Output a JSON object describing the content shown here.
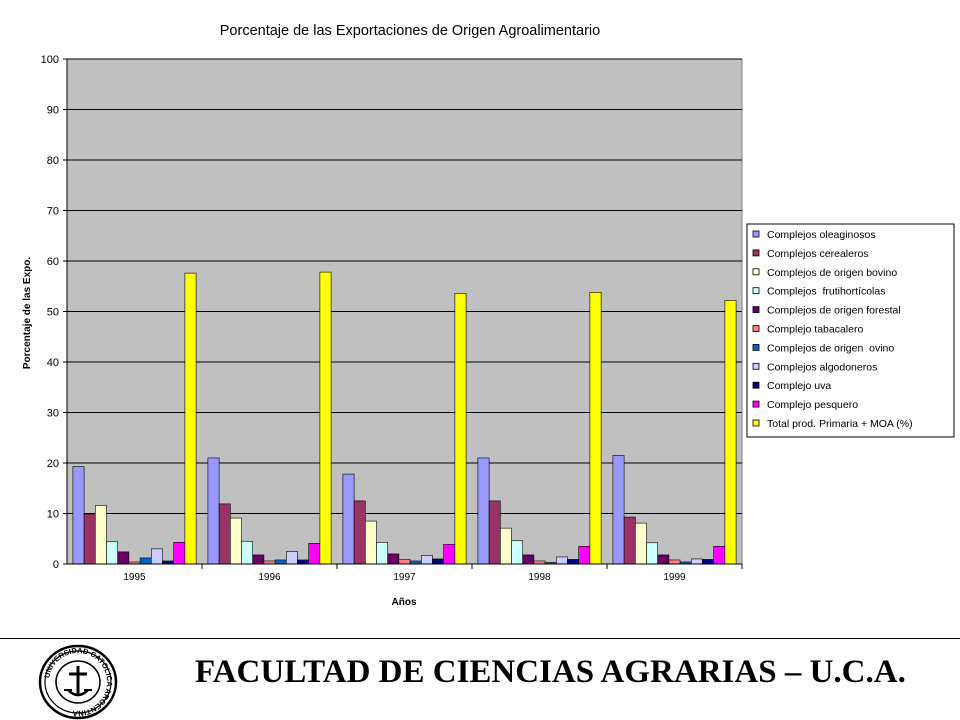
{
  "chart_data": {
    "type": "bar",
    "title": "Porcentaje de las Exportaciones de Origen Agroalimentario",
    "xlabel": "Años",
    "ylabel": "Porcentaje de las Expo.",
    "ylim": [
      0,
      100
    ],
    "yticks": [
      0,
      10,
      20,
      30,
      40,
      50,
      60,
      70,
      80,
      90,
      100
    ],
    "grid": true,
    "legend_position": "right",
    "background_color": "#c0c0c0",
    "categories": [
      "1995",
      "1996",
      "1997",
      "1998",
      "1999"
    ],
    "series": [
      {
        "name": "Complejos oleaginosos",
        "color": "#9999ff",
        "values": [
          19.3,
          21.0,
          17.8,
          21.0,
          21.5
        ]
      },
      {
        "name": "Complejos cerealeros",
        "color": "#993366",
        "values": [
          9.9,
          11.9,
          12.5,
          12.5,
          9.3
        ]
      },
      {
        "name": "Complejos de origen bovino",
        "color": "#ffffcc",
        "values": [
          11.6,
          9.1,
          8.5,
          7.1,
          8.1
        ]
      },
      {
        "name": "Complejos  frutihortícolas",
        "color": "#ccffff",
        "values": [
          4.4,
          4.5,
          4.3,
          4.6,
          4.2
        ]
      },
      {
        "name": "Complejos de origen forestal",
        "color": "#660066",
        "values": [
          2.4,
          1.8,
          2.0,
          1.8,
          1.8
        ]
      },
      {
        "name": "Complejo tabacalero",
        "color": "#ff8080",
        "values": [
          0.4,
          0.6,
          0.9,
          0.6,
          0.8
        ]
      },
      {
        "name": "Complejos de origen  ovino",
        "color": "#0066cc",
        "values": [
          1.2,
          0.8,
          0.6,
          0.3,
          0.4
        ]
      },
      {
        "name": "Complejos algodoneros",
        "color": "#ccccff",
        "values": [
          3.0,
          2.5,
          1.7,
          1.4,
          1.0
        ]
      },
      {
        "name": "Complejo uva",
        "color": "#000080",
        "values": [
          0.6,
          0.8,
          1.0,
          0.9,
          0.9
        ]
      },
      {
        "name": "Complejo pesquero",
        "color": "#ff00ff",
        "values": [
          4.3,
          4.1,
          3.9,
          3.5,
          3.5
        ]
      },
      {
        "name": "Total prod. Primaria + MOA (%)",
        "color": "#ffff00",
        "values": [
          57.6,
          57.8,
          53.6,
          53.8,
          52.2
        ]
      }
    ]
  },
  "footer": {
    "title": "FACULTAD DE CIENCIAS AGRARIAS – U.C.A.",
    "seal_text": "UNIVERSIDAD CATOLICA ARGENTINA"
  }
}
